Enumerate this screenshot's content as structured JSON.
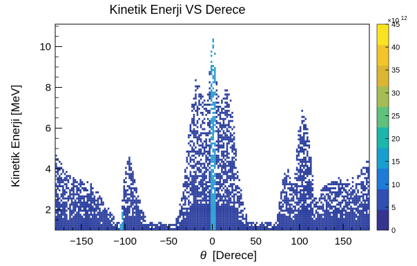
{
  "chart_data": {
    "type": "heatmap",
    "title": "Kinetik Enerji VS Derece",
    "xlabel_symbol": "θ",
    "xlabel_unit": "[Derece]",
    "ylabel": "Kinetik Enerji [MeV]",
    "xlim": [
      -180,
      180
    ],
    "ylim": [
      1,
      11.1
    ],
    "x_ticks": [
      -150,
      -100,
      -50,
      0,
      50,
      100,
      150
    ],
    "x_tick_labels": [
      "−150",
      "−100",
      "−50",
      "0",
      "50",
      "100",
      "150"
    ],
    "y_ticks": [
      2,
      4,
      6,
      8,
      10
    ],
    "y_tick_labels": [
      "2",
      "4",
      "6",
      "8",
      "10"
    ],
    "colorbar": {
      "range": [
        0,
        45
      ],
      "ticks": [
        0,
        5,
        10,
        15,
        20,
        25,
        30,
        35,
        40,
        45
      ],
      "tick_labels": [
        "0",
        "5",
        "10",
        "15",
        "20",
        "25",
        "30",
        "35",
        "40",
        "45"
      ],
      "exponent_label": "×10",
      "exponent_power": "12",
      "colors": [
        "#35348f",
        "#3150b3",
        "#1f7bd8",
        "#17a0cf",
        "#1db6ac",
        "#5fc17c",
        "#a7bd53",
        "#dcb633",
        "#f2c52a",
        "#f9e322"
      ]
    },
    "fill_color": "#2c3f9e",
    "peak_color": "#2f9fd3",
    "x_bin_deg": 2,
    "y_bin_mev": 0.1,
    "dense_regions": [
      {
        "x": [
          -180,
          -177,
          -174,
          -171,
          -168,
          -165,
          -162,
          -159,
          -156,
          -153,
          -150,
          -147,
          -144,
          -141,
          -138,
          -135,
          -132,
          -129,
          -126,
          -123,
          -120,
          -117,
          -114,
          -111
        ],
        "ymax": [
          4.7,
          4.5,
          4.3,
          4.1,
          3.9,
          3.7,
          3.6,
          3.55,
          3.5,
          3.5,
          3.45,
          3.4,
          3.35,
          3.3,
          3.2,
          3.1,
          2.9,
          2.7,
          2.5,
          2.3,
          2.1,
          1.9,
          1.7,
          1.5
        ]
      },
      {
        "x": [
          103,
          106,
          109,
          112,
          115,
          118,
          121,
          124,
          127,
          130,
          133,
          136,
          139,
          142,
          145,
          148,
          151,
          154,
          157,
          160,
          163,
          166,
          169,
          172,
          175,
          178,
          180
        ],
        "ymax": [
          1.5,
          1.7,
          1.9,
          2.1,
          2.3,
          2.5,
          2.7,
          2.9,
          3.1,
          3.3,
          3.45,
          3.5,
          3.5,
          3.5,
          3.55,
          3.6,
          3.6,
          3.55,
          3.5,
          3.55,
          3.6,
          3.7,
          3.85,
          4.0,
          4.2,
          4.4,
          4.5
        ]
      },
      {
        "x": [
          -42,
          -36,
          -32,
          -28,
          -24,
          -20,
          -16,
          -12,
          -8,
          -4,
          -2,
          0,
          2,
          4,
          8,
          12,
          16,
          20,
          24,
          28,
          32,
          36,
          42
        ],
        "ymax": [
          1.4,
          2.4,
          3.6,
          5.2,
          7.0,
          8.4,
          8.2,
          7.8,
          7.4,
          7.8,
          9.6,
          10.6,
          10.3,
          9.0,
          7.0,
          7.6,
          7.9,
          7.6,
          6.6,
          4.6,
          3.2,
          2.2,
          1.4
        ]
      },
      {
        "x": [
          -104,
          -100,
          -96,
          -92,
          -88,
          -84,
          -80,
          -76
        ],
        "ymax": [
          2.0,
          4.2,
          4.7,
          4.1,
          3.3,
          2.6,
          2.0,
          1.6
        ]
      },
      {
        "x": [
          74,
          78,
          82,
          86,
          90,
          94,
          98,
          102,
          104,
          108,
          112,
          116,
          118
        ],
        "ymax": [
          1.7,
          2.6,
          3.8,
          4.1,
          3.4,
          3.2,
          5.5,
          6.8,
          7.0,
          6.2,
          5.0,
          3.4,
          2.5
        ]
      }
    ],
    "baseline_band": {
      "x": [
        -128,
        128
      ],
      "ymax": 1.35
    }
  }
}
